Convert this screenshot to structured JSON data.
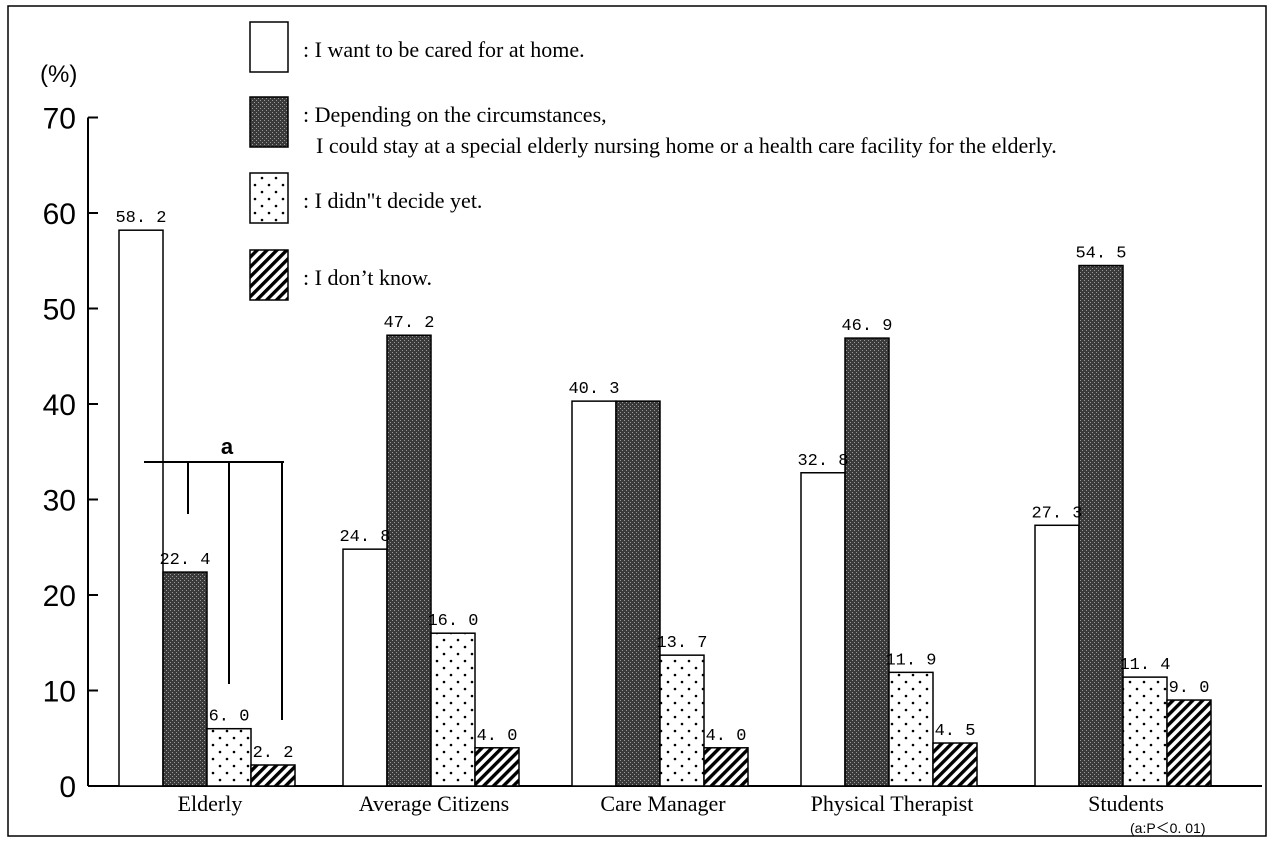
{
  "chart_data": {
    "type": "bar",
    "ylabel": "(%)",
    "ylim": [
      0,
      70
    ],
    "yticks": [
      "0",
      "10",
      "20",
      "30",
      "40",
      "50",
      "60",
      "70"
    ],
    "categories": [
      "Elderly",
      "Average Citizens",
      "Care Manager",
      "Physical Therapist",
      "Students"
    ],
    "series": [
      {
        "name": ": I want to be cared for at home.",
        "pattern": "white",
        "values": [
          58.2,
          24.8,
          40.3,
          32.8,
          27.3
        ],
        "labels": [
          "58. 2",
          "24. 8",
          "40. 3",
          "32. 8",
          "27. 3"
        ]
      },
      {
        "name": ": Depending on the circumstances,",
        "name_line2": "I could stay at a special elderly  nursing home or a health care facility for the elderly.",
        "pattern": "dark-crosshatch",
        "values": [
          22.4,
          47.2,
          40.3,
          46.9,
          54.5
        ],
        "labels": [
          "22. 4",
          "47. 2",
          "",
          "46. 9",
          "54. 5"
        ]
      },
      {
        "name": ": I didn\"t decide yet.",
        "pattern": "dots",
        "values": [
          6.0,
          16.0,
          13.7,
          11.9,
          11.4
        ],
        "labels": [
          "6. 0",
          "16. 0",
          "13. 7",
          "11. 9",
          "11. 4"
        ]
      },
      {
        "name": ": I don’t know.",
        "pattern": "diagonal-hatch",
        "values": [
          2.2,
          4.0,
          4.0,
          4.5,
          9.0
        ],
        "labels": [
          "2. 2",
          "4. 0",
          "4. 0",
          "4. 5",
          "9. 0"
        ]
      }
    ],
    "significance": {
      "label": "a",
      "group": "Elderly"
    },
    "footnote": "(a:P＜0. 01)",
    "grid": false,
    "legend_position": "top-center"
  }
}
